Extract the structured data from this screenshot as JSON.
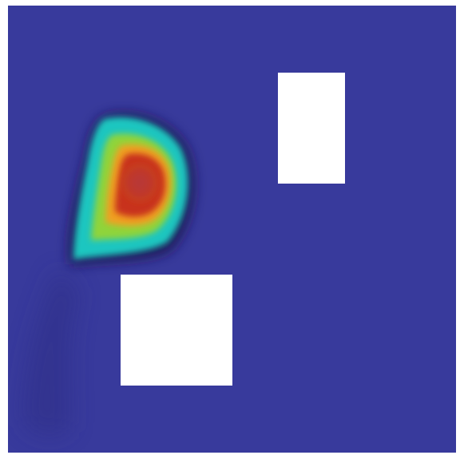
{
  "figure": {
    "background_color": "#383a9c",
    "hole_color": "#ffffff",
    "colormap": [
      "#383a9c",
      "#22104a",
      "#1fc6c0",
      "#8fd43a",
      "#f0a020",
      "#c8321a",
      "#b43a3a"
    ]
  }
}
